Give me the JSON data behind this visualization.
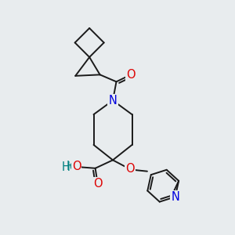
{
  "background_color": "#e8ecee",
  "bond_color": "#1a1a1a",
  "atom_colors": {
    "N": "#0000dd",
    "O": "#dd0000",
    "OH_O": "#dd0000",
    "OH_H": "#008080",
    "C": "#1a1a1a"
  },
  "font_size_atoms": 10.5,
  "lw": 1.4
}
